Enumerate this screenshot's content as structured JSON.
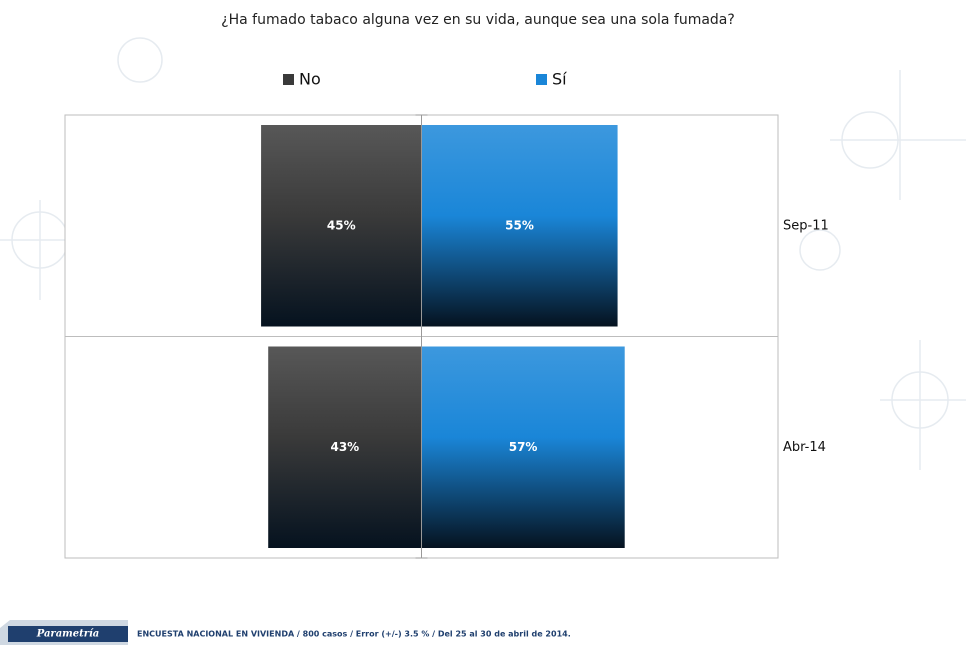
{
  "chart_data": {
    "type": "diverging-bar",
    "title": "¿Ha fumado tabaco alguna vez en su vida, aunque sea una sola fumada?",
    "categories": [
      "Sep-11",
      "Abr-14"
    ],
    "series": [
      {
        "name": "No",
        "color": "#3a3a3a",
        "values": [
          45,
          43
        ],
        "value_labels": [
          "45%",
          "43%"
        ]
      },
      {
        "name": "Sí",
        "color": "#1a86d8",
        "values": [
          55,
          57
        ],
        "value_labels": [
          "55%",
          "57%"
        ]
      }
    ],
    "xlim": [
      -100,
      100
    ]
  },
  "footer": {
    "brand": "Parametría",
    "text": "ENCUESTA NACIONAL EN VIVIENDA / 800 casos / Error (+/-) 3.5 % / Del 25 al 30 de abril de 2014."
  }
}
